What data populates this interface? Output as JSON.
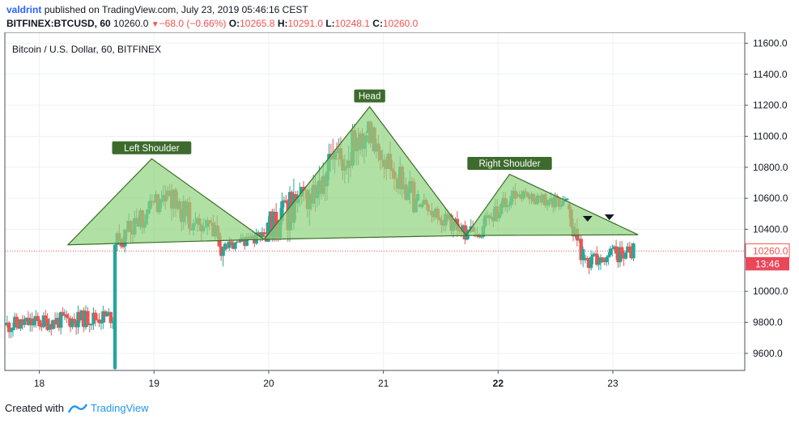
{
  "header": {
    "user": "valdrint",
    "published_text": "published on TradingView.com, July 23, 2019 05:46:16 CEST",
    "symbol": "BITFINEX:BTCUSD, 60",
    "last": "10260.0",
    "change": "−68.0 (−0.66%)",
    "o_label": "O:",
    "o_value": "10265.8",
    "h_label": "H:",
    "h_value": "10291.0",
    "l_label": "L:",
    "l_value": "10248.1",
    "c_label": "C:",
    "c_value": "10260.0"
  },
  "footer": {
    "created_with": "Created with",
    "brand": "TradingView"
  },
  "colors": {
    "up": "#26a69a",
    "down": "#ef5350",
    "pattern_fill": "#8fd37e",
    "pattern_stroke": "#3b6e27",
    "label_bg": "#3d6b2d",
    "axis_text": "#131722",
    "grid": "#eef0f3",
    "price_line": "#ef5350",
    "countdown_bg": "#e8485a"
  },
  "chart_data": {
    "type": "candlestick",
    "title": "Bitcoin / U.S. Dollar, 60, BITFINEX",
    "y_ticks": [
      "11600.0",
      "11400.0",
      "11200.0",
      "11000.0",
      "10800.0",
      "10600.0",
      "10400.0",
      "10000.0",
      "9800.0",
      "9600.0"
    ],
    "ylim": [
      9490,
      11670
    ],
    "x_ticks": [
      {
        "label": "18",
        "day": 18
      },
      {
        "label": "19",
        "day": 19
      },
      {
        "label": "20",
        "day": 20
      },
      {
        "label": "21",
        "day": 21
      },
      {
        "label": "22",
        "day": 22,
        "bold": true
      },
      {
        "label": "23",
        "day": 23
      }
    ],
    "xlim": [
      17.7,
      24.15
    ],
    "last_price": 10260.0,
    "last_price_label": "10260.0",
    "countdown": "13:46",
    "grid": true,
    "pattern": {
      "name": "Head and Shoulders",
      "triangles": [
        {
          "points": [
            [
              18.25,
              10300
            ],
            [
              18.98,
              10855
            ],
            [
              19.96,
              10335
            ]
          ]
        },
        {
          "points": [
            [
              19.96,
              10335
            ],
            [
              20.88,
              11190
            ],
            [
              21.72,
              10360
            ]
          ]
        },
        {
          "points": [
            [
              21.72,
              10360
            ],
            [
              22.1,
              10755
            ],
            [
              23.22,
              10365
            ]
          ]
        }
      ],
      "labels": [
        {
          "text": "Left Shoulder",
          "day": 18.98,
          "price": 10920
        },
        {
          "text": "Head",
          "day": 20.88,
          "price": 11255
        },
        {
          "text": "Right Shoulder",
          "day": 22.1,
          "price": 10820
        }
      ],
      "markers": [
        {
          "day": 22.78,
          "price": 10465
        },
        {
          "day": 22.97,
          "price": 10475
        }
      ]
    },
    "candles_segments": [
      {
        "from": 17.72,
        "to": 18.64,
        "start": 9780,
        "end": 9840,
        "lo": 9640,
        "hi": 9990,
        "n": 56
      },
      {
        "from": 18.66,
        "to": 18.66,
        "start": 9500,
        "end": 10300,
        "lo": 9490,
        "hi": 10305,
        "n": 1
      },
      {
        "from": 18.68,
        "to": 19.1,
        "start": 10300,
        "end": 10620,
        "lo": 10250,
        "hi": 10700,
        "n": 26
      },
      {
        "from": 19.12,
        "to": 19.62,
        "start": 10620,
        "end": 10290,
        "lo": 10160,
        "hi": 10700,
        "n": 30
      },
      {
        "from": 19.64,
        "to": 19.96,
        "start": 10290,
        "end": 10360,
        "lo": 10260,
        "hi": 10480,
        "n": 20
      },
      {
        "from": 19.98,
        "to": 20.85,
        "start": 10360,
        "end": 11020,
        "lo": 10320,
        "hi": 11080,
        "n": 52
      },
      {
        "from": 20.87,
        "to": 21.3,
        "start": 11020,
        "end": 10560,
        "lo": 10500,
        "hi": 11100,
        "n": 26
      },
      {
        "from": 21.32,
        "to": 21.78,
        "start": 10560,
        "end": 10360,
        "lo": 10300,
        "hi": 10660,
        "n": 28
      },
      {
        "from": 21.8,
        "to": 22.15,
        "start": 10360,
        "end": 10620,
        "lo": 10340,
        "hi": 10700,
        "n": 21
      },
      {
        "from": 22.17,
        "to": 22.6,
        "start": 10620,
        "end": 10560,
        "lo": 10440,
        "hi": 10700,
        "n": 26
      },
      {
        "from": 22.62,
        "to": 22.74,
        "start": 10560,
        "end": 10200,
        "lo": 10120,
        "hi": 10580,
        "n": 8
      },
      {
        "from": 22.76,
        "to": 23.18,
        "start": 10200,
        "end": 10260,
        "lo": 10060,
        "hi": 10420,
        "n": 26
      }
    ]
  }
}
